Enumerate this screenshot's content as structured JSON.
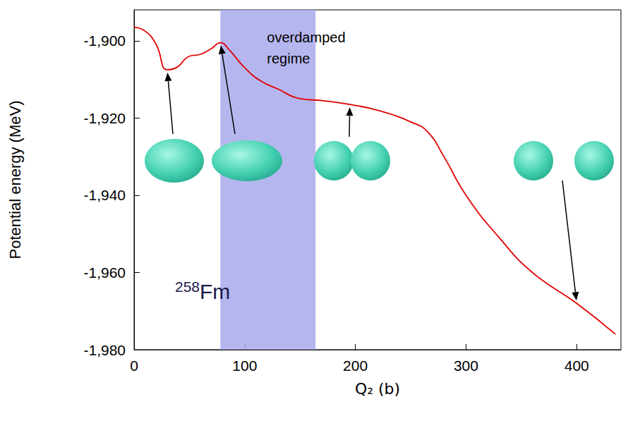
{
  "chart_data": {
    "type": "line",
    "x_label": "Q₂ (b)",
    "y_label": "Potential energy (MeV)",
    "x": [
      0,
      10,
      20,
      30,
      38,
      50,
      60,
      70,
      78,
      85,
      100,
      115,
      130,
      150,
      170,
      195,
      220,
      250,
      265,
      280,
      300,
      330,
      360,
      400,
      435
    ],
    "values": [
      -1896.5,
      -1897.5,
      -1901,
      -1907.5,
      -1907,
      -1904,
      -1903.5,
      -1902,
      -1900.5,
      -1902,
      -1907,
      -1910.5,
      -1912.5,
      -1915,
      -1915.5,
      -1916.5,
      -1918,
      -1921,
      -1923.5,
      -1930,
      -1940,
      -1951,
      -1960,
      -1968,
      -1976
    ],
    "color": "#e00000",
    "xlim": [
      0,
      440
    ],
    "xticks": [
      0,
      100,
      200,
      300,
      400
    ],
    "ylim": [
      -1980,
      -1892
    ],
    "yticks": [
      -1980,
      -1960,
      -1940,
      -1920,
      -1900
    ],
    "grid": false,
    "shaded_region": {
      "label": "overdamped regime",
      "x": [
        78,
        164
      ],
      "color": "#a9a9ec"
    },
    "nucleus": {
      "mass": "258",
      "element": "Fm"
    },
    "annotated_points_x": [
      30,
      78,
      195,
      400
    ]
  }
}
